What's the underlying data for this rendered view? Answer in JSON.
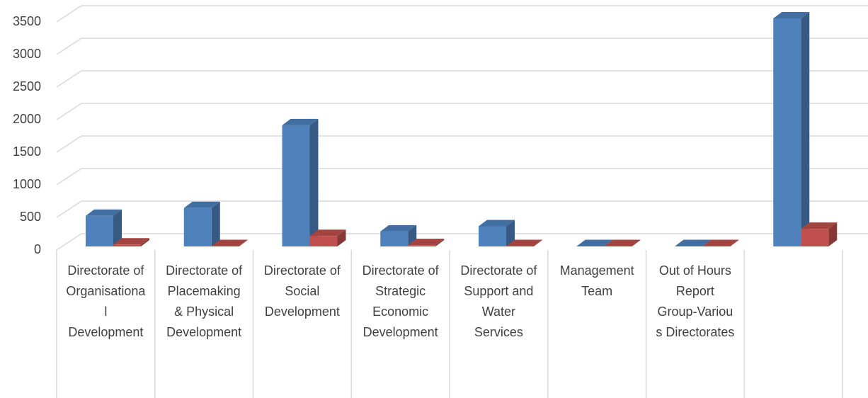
{
  "chart_data": {
    "type": "bar3d",
    "categories": [
      "Directorate of Organisational Development",
      "Directorate of Placemaking & Physical Development",
      "Directorate of Social Development",
      "Directorate of Strategic Economic Development",
      "Directorate of Support and Water Services",
      "Management Team",
      "Out of Hours Report Group-Various Directorates",
      null
    ],
    "series": [
      {
        "color": "#4f81bd",
        "values": [
          470,
          590,
          1860,
          230,
          310,
          5,
          5,
          3500
        ]
      },
      {
        "color": "#c0504d",
        "values": [
          30,
          5,
          160,
          20,
          5,
          5,
          5,
          270
        ]
      }
    ],
    "ylim": [
      0,
      3500
    ],
    "yticks": [
      0,
      500,
      1000,
      1500,
      2000,
      2500,
      3000,
      3500
    ],
    "grid": true
  }
}
